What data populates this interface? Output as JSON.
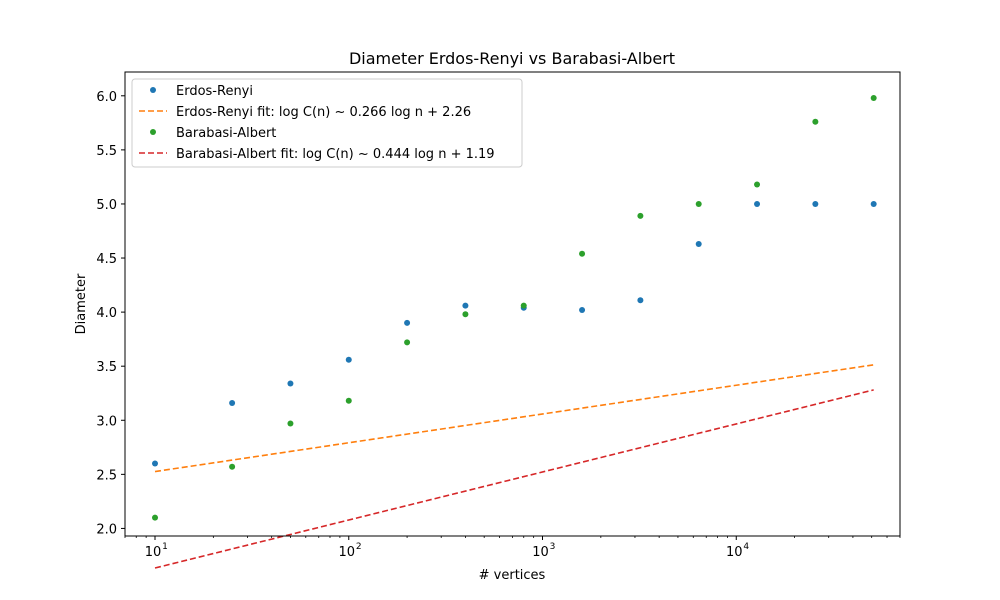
{
  "chart_data": {
    "type": "scatter",
    "title": "Diameter Erdos-Renyi vs Barabasi-Albert",
    "xlabel": "# vertices",
    "ylabel": "Diameter",
    "xscale": "log",
    "xlim": [
      7,
      70000
    ],
    "ylim": [
      1.93,
      6.22
    ],
    "x_ticks": [
      {
        "value": 10,
        "base": "10",
        "exp": "1"
      },
      {
        "value": 100,
        "base": "10",
        "exp": "2"
      },
      {
        "value": 1000,
        "base": "10",
        "exp": "3"
      },
      {
        "value": 10000,
        "base": "10",
        "exp": "4"
      }
    ],
    "y_ticks": [
      "2.0",
      "2.5",
      "3.0",
      "3.5",
      "4.0",
      "4.5",
      "5.0",
      "5.5",
      "6.0"
    ],
    "x": [
      10,
      25,
      50,
      100,
      200,
      400,
      800,
      1600,
      3200,
      6400,
      12800,
      25600,
      51200
    ],
    "series": [
      {
        "name": "Erdos-Renyi",
        "kind": "points",
        "color": "#1f77b4",
        "values": [
          2.6,
          3.16,
          3.34,
          3.56,
          3.9,
          4.06,
          4.04,
          4.02,
          4.11,
          4.63,
          5.0,
          5.0,
          5.0
        ]
      },
      {
        "name": "Erdos-Renyi fit: log C(n) ~ 0.266 log n + 2.26",
        "kind": "line",
        "color": "#ff7f0e",
        "slope": 0.266,
        "intercept": 2.26
      },
      {
        "name": "Barabasi-Albert",
        "kind": "points",
        "color": "#2ca02c",
        "values": [
          2.1,
          2.57,
          2.97,
          3.18,
          3.72,
          3.98,
          4.06,
          4.54,
          4.89,
          5.0,
          5.18,
          5.76,
          5.98
        ]
      },
      {
        "name": "Barabasi-Albert fit: log C(n) ~ 0.444 log n + 1.19",
        "kind": "line",
        "color": "#d62728",
        "slope": 0.444,
        "intercept": 1.19
      }
    ],
    "legend_position": "top-left",
    "grid": false
  }
}
